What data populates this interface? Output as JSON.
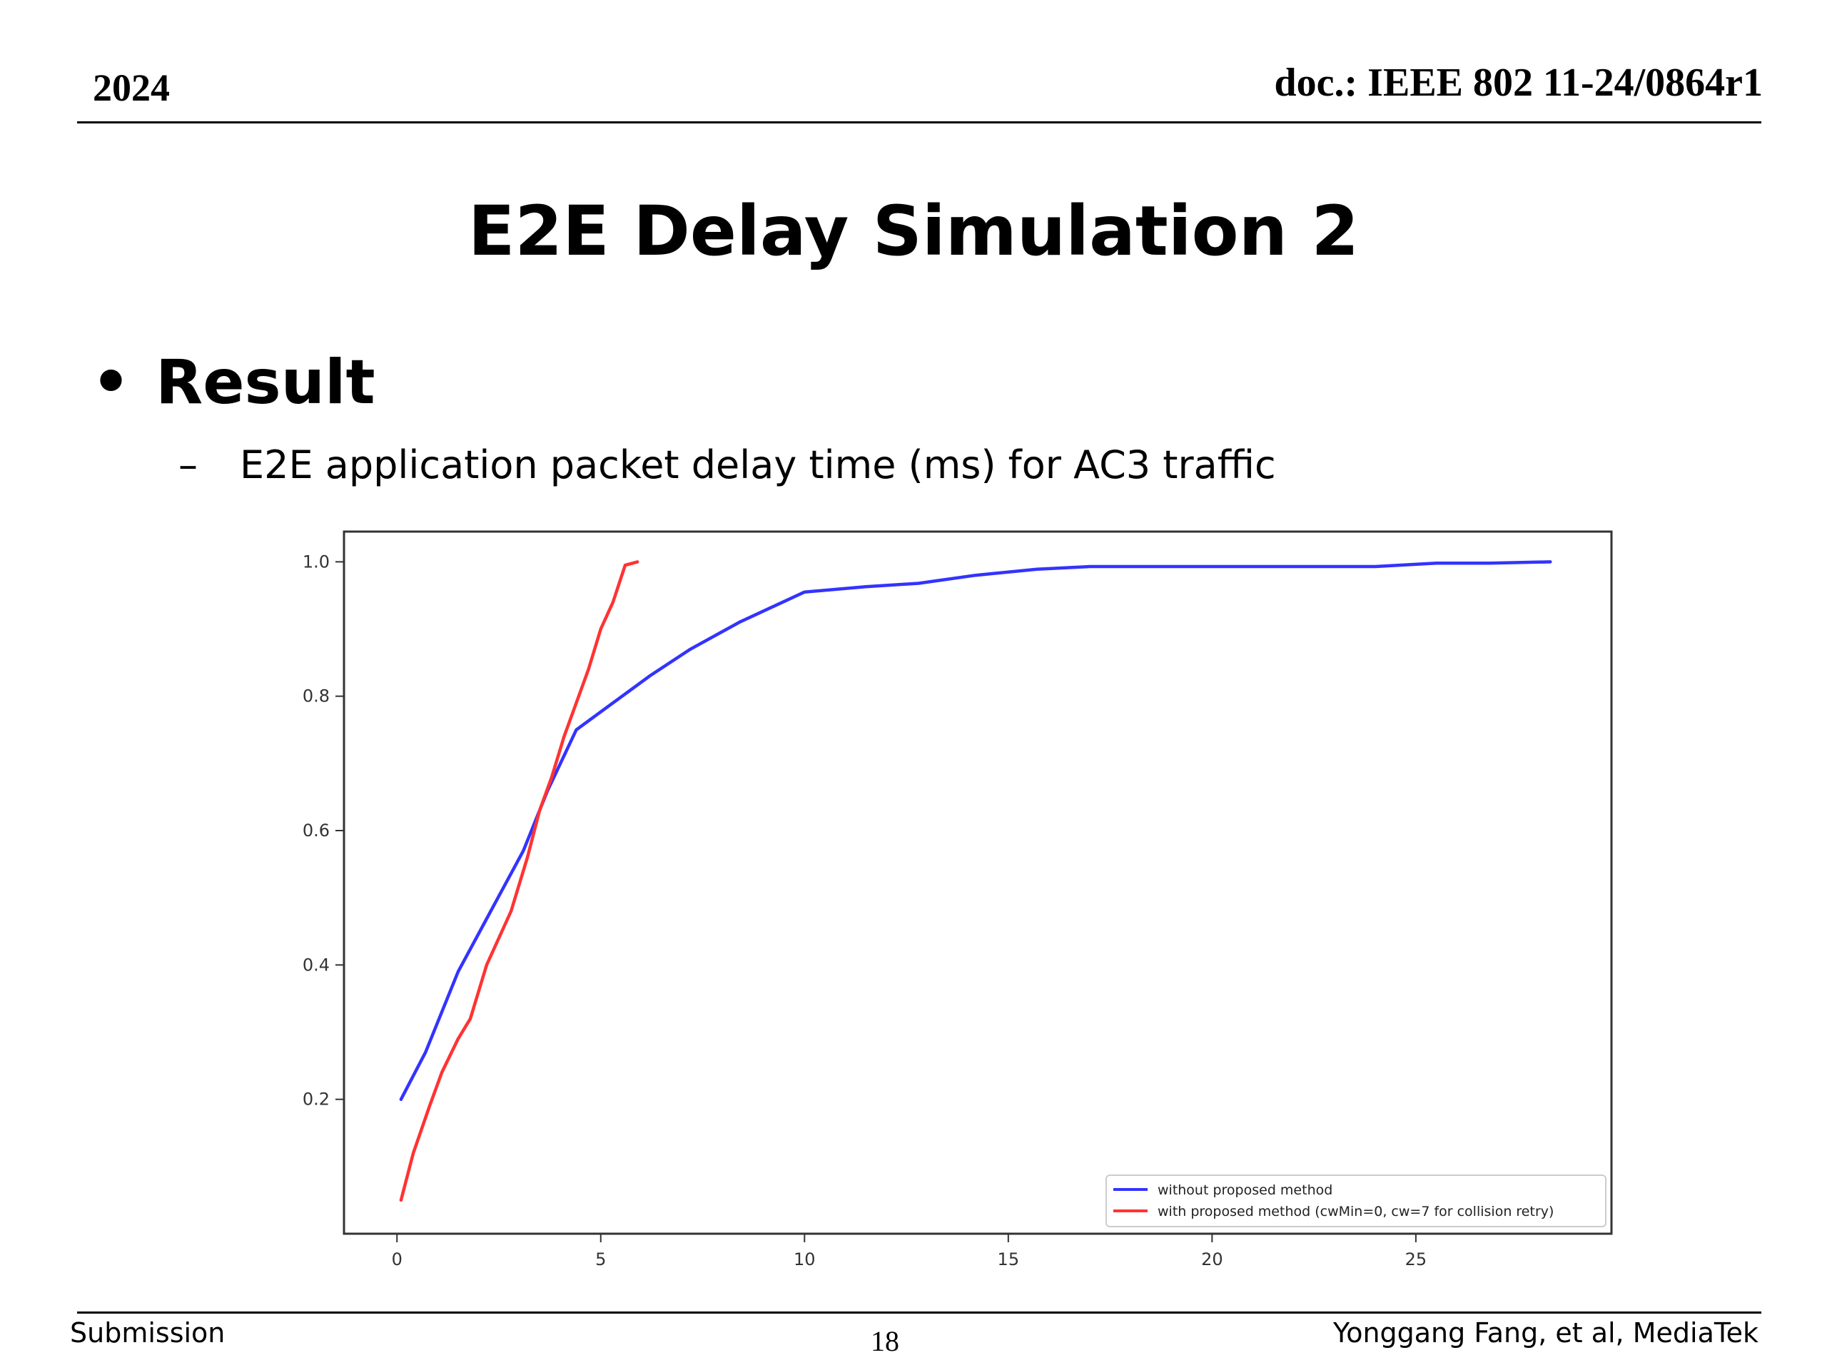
{
  "header": {
    "year": "2024",
    "doc": "doc.: IEEE 802 11-24/0864r1"
  },
  "slide": {
    "title": "E2E Delay Simulation 2",
    "bullet": "Result",
    "sub_bullet": "E2E application packet delay time (ms) for AC3 traffic"
  },
  "footer": {
    "left": "Submission",
    "page": "18",
    "right": "Yonggang Fang, et al, MediaTek"
  },
  "chart_data": {
    "type": "line",
    "xlim": [
      -1.3,
      29.8
    ],
    "ylim": [
      0.0,
      1.045
    ],
    "x_ticks": [
      0,
      5,
      10,
      15,
      20,
      25
    ],
    "y_ticks": [
      0.2,
      0.4,
      0.6,
      0.8,
      1.0
    ],
    "x_tick_labels": [
      "0",
      "5",
      "10",
      "15",
      "20",
      "25"
    ],
    "y_tick_labels": [
      "0.2",
      "0.4",
      "0.6",
      "0.8",
      "1.0"
    ],
    "grid": false,
    "legend_position": "lower-right",
    "series": [
      {
        "name": "without proposed method",
        "color": "#3333ff",
        "points": [
          [
            0.1,
            0.2
          ],
          [
            0.7,
            0.27
          ],
          [
            1.5,
            0.39
          ],
          [
            2.3,
            0.48
          ],
          [
            3.1,
            0.57
          ],
          [
            3.7,
            0.66
          ],
          [
            4.4,
            0.75
          ],
          [
            5.3,
            0.79
          ],
          [
            6.2,
            0.83
          ],
          [
            7.2,
            0.87
          ],
          [
            8.4,
            0.91
          ],
          [
            10.0,
            0.955
          ],
          [
            11.5,
            0.963
          ],
          [
            12.8,
            0.968
          ],
          [
            14.2,
            0.98
          ],
          [
            15.7,
            0.989
          ],
          [
            17.0,
            0.993
          ],
          [
            20.0,
            0.993
          ],
          [
            24.0,
            0.993
          ],
          [
            25.5,
            0.998
          ],
          [
            26.8,
            0.998
          ],
          [
            28.3,
            1.0
          ]
        ]
      },
      {
        "name": "with proposed method (cwMin=0, cw=7 for collision retry)",
        "color": "#ff3333",
        "points": [
          [
            0.1,
            0.05
          ],
          [
            0.4,
            0.12
          ],
          [
            0.8,
            0.19
          ],
          [
            1.1,
            0.24
          ],
          [
            1.5,
            0.29
          ],
          [
            1.8,
            0.32
          ],
          [
            2.2,
            0.4
          ],
          [
            2.5,
            0.44
          ],
          [
            2.8,
            0.48
          ],
          [
            3.2,
            0.56
          ],
          [
            3.5,
            0.63
          ],
          [
            3.8,
            0.68
          ],
          [
            4.1,
            0.74
          ],
          [
            4.4,
            0.79
          ],
          [
            4.7,
            0.84
          ],
          [
            5.0,
            0.9
          ],
          [
            5.3,
            0.94
          ],
          [
            5.6,
            0.995
          ],
          [
            5.9,
            1.0
          ]
        ]
      }
    ]
  }
}
